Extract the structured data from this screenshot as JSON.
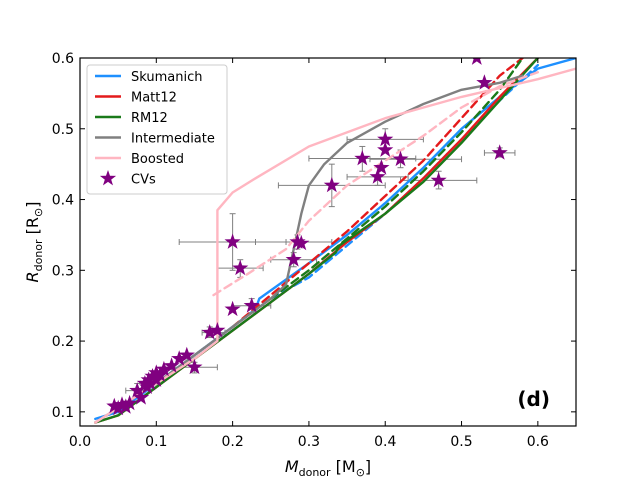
{
  "chart_data": {
    "type": "line",
    "panel_label": "(d)",
    "xlabel": "M",
    "xlabel_sub": "donor",
    "xlabel_unit": " [M",
    "xlabel_unit_sub": "⊙",
    "xlabel_close": "]",
    "ylabel": "R",
    "ylabel_sub": "donor",
    "ylabel_unit": " [R",
    "ylabel_unit_sub": "⊙",
    "ylabel_close": "]",
    "xlim": [
      0.0,
      0.65
    ],
    "ylim": [
      0.08,
      0.6
    ],
    "xticks": [
      0.0,
      0.1,
      0.2,
      0.3,
      0.4,
      0.5,
      0.6
    ],
    "xtick_labels": [
      "0.0",
      "0.1",
      "0.2",
      "0.3",
      "0.4",
      "0.5",
      "0.6"
    ],
    "yticks": [
      0.1,
      0.2,
      0.3,
      0.4,
      0.5,
      0.6
    ],
    "ytick_labels": [
      "0.1",
      "0.2",
      "0.3",
      "0.4",
      "0.5",
      "0.6"
    ],
    "legend_position": "top-left",
    "legend": [
      {
        "label": "Skumanich",
        "color": "#1e90ff",
        "kind": "line"
      },
      {
        "label": "Matt12",
        "color": "#e41a1c",
        "kind": "line"
      },
      {
        "label": "RM12",
        "color": "#1a7a1a",
        "kind": "line"
      },
      {
        "label": "Intermediate",
        "color": "#808080",
        "kind": "line"
      },
      {
        "label": "Boosted",
        "color": "#ffb6c1",
        "kind": "line"
      },
      {
        "label": "CVs",
        "color": "#800080",
        "kind": "star"
      }
    ],
    "series": [
      {
        "name": "Skumanich",
        "style": "solid",
        "color": "#1e90ff",
        "x": [
          0.02,
          0.05,
          0.1,
          0.15,
          0.2,
          0.23,
          0.235,
          0.3,
          0.35,
          0.4,
          0.45,
          0.5,
          0.55,
          0.6,
          0.65
        ],
        "y": [
          0.09,
          0.1,
          0.14,
          0.18,
          0.22,
          0.245,
          0.26,
          0.31,
          0.35,
          0.395,
          0.445,
          0.5,
          0.545,
          0.585,
          0.6
        ]
      },
      {
        "name": "Skumanich",
        "style": "dashed",
        "color": "#1e90ff",
        "x": [
          0.1,
          0.15,
          0.2,
          0.25,
          0.3,
          0.35,
          0.4,
          0.45,
          0.5,
          0.55,
          0.6
        ],
        "y": [
          0.14,
          0.18,
          0.22,
          0.26,
          0.29,
          0.335,
          0.38,
          0.43,
          0.485,
          0.54,
          0.59
        ]
      },
      {
        "name": "Matt12",
        "style": "solid",
        "color": "#e41a1c",
        "x": [
          0.02,
          0.05,
          0.1,
          0.15,
          0.2,
          0.25,
          0.3,
          0.35,
          0.4,
          0.45,
          0.5,
          0.55,
          0.6
        ],
        "y": [
          0.085,
          0.095,
          0.135,
          0.175,
          0.215,
          0.255,
          0.295,
          0.34,
          0.38,
          0.43,
          0.485,
          0.545,
          0.6
        ]
      },
      {
        "name": "Matt12",
        "style": "dashed",
        "color": "#e41a1c",
        "x": [
          0.2,
          0.25,
          0.3,
          0.35,
          0.4,
          0.45,
          0.5,
          0.55,
          0.58
        ],
        "y": [
          0.22,
          0.265,
          0.31,
          0.355,
          0.405,
          0.455,
          0.515,
          0.575,
          0.6
        ]
      },
      {
        "name": "RM12",
        "style": "solid",
        "color": "#1a7a1a",
        "x": [
          0.02,
          0.05,
          0.1,
          0.15,
          0.2,
          0.25,
          0.3,
          0.335,
          0.34,
          0.4,
          0.45,
          0.5,
          0.55,
          0.6
        ],
        "y": [
          0.085,
          0.095,
          0.135,
          0.175,
          0.215,
          0.255,
          0.295,
          0.325,
          0.335,
          0.38,
          0.425,
          0.48,
          0.54,
          0.6
        ]
      },
      {
        "name": "RM12",
        "style": "dashed",
        "color": "#1a7a1a",
        "x": [
          0.25,
          0.3,
          0.35,
          0.4,
          0.45,
          0.5,
          0.55,
          0.58
        ],
        "y": [
          0.26,
          0.3,
          0.345,
          0.39,
          0.44,
          0.495,
          0.555,
          0.6
        ]
      },
      {
        "name": "Intermediate",
        "style": "solid",
        "color": "#808080",
        "x": [
          0.02,
          0.1,
          0.2,
          0.25,
          0.27,
          0.28,
          0.29,
          0.3,
          0.32,
          0.35,
          0.4,
          0.45,
          0.5,
          0.55,
          0.58
        ],
        "y": [
          0.085,
          0.14,
          0.22,
          0.26,
          0.28,
          0.33,
          0.38,
          0.42,
          0.45,
          0.48,
          0.51,
          0.535,
          0.555,
          0.565,
          0.575
        ]
      },
      {
        "name": "Boosted",
        "style": "solid",
        "color": "#ffb6c1",
        "x": [
          0.02,
          0.1,
          0.15,
          0.18,
          0.18,
          0.2,
          0.23,
          0.3,
          0.4,
          0.5,
          0.6,
          0.65
        ],
        "y": [
          0.085,
          0.14,
          0.175,
          0.2,
          0.385,
          0.41,
          0.43,
          0.475,
          0.515,
          0.545,
          0.57,
          0.585
        ]
      },
      {
        "name": "Boosted",
        "style": "dashed",
        "color": "#ffb6c1",
        "x": [
          0.175,
          0.22,
          0.27,
          0.3,
          0.35,
          0.4,
          0.45,
          0.5,
          0.55,
          0.6
        ],
        "y": [
          0.265,
          0.295,
          0.33,
          0.37,
          0.42,
          0.455,
          0.49,
          0.53,
          0.56,
          0.58
        ]
      }
    ],
    "cvs": [
      {
        "x": 0.045,
        "y": 0.108
      },
      {
        "x": 0.05,
        "y": 0.105
      },
      {
        "x": 0.055,
        "y": 0.11
      },
      {
        "x": 0.06,
        "y": 0.107
      },
      {
        "x": 0.065,
        "y": 0.112
      },
      {
        "x": 0.075,
        "y": 0.13
      },
      {
        "x": 0.08,
        "y": 0.12
      },
      {
        "x": 0.085,
        "y": 0.14
      },
      {
        "x": 0.088,
        "y": 0.135
      },
      {
        "x": 0.09,
        "y": 0.145
      },
      {
        "x": 0.092,
        "y": 0.14
      },
      {
        "x": 0.095,
        "y": 0.15
      },
      {
        "x": 0.1,
        "y": 0.155
      },
      {
        "x": 0.1,
        "y": 0.145
      },
      {
        "x": 0.105,
        "y": 0.152
      },
      {
        "x": 0.11,
        "y": 0.16
      },
      {
        "x": 0.12,
        "y": 0.165
      },
      {
        "x": 0.13,
        "y": 0.175
      },
      {
        "x": 0.14,
        "y": 0.18
      },
      {
        "x": 0.15,
        "y": 0.163
      },
      {
        "x": 0.17,
        "y": 0.212
      },
      {
        "x": 0.18,
        "y": 0.215
      },
      {
        "x": 0.2,
        "y": 0.34
      },
      {
        "x": 0.2,
        "y": 0.245
      },
      {
        "x": 0.21,
        "y": 0.303
      },
      {
        "x": 0.225,
        "y": 0.25
      },
      {
        "x": 0.28,
        "y": 0.315
      },
      {
        "x": 0.285,
        "y": 0.34
      },
      {
        "x": 0.29,
        "y": 0.338
      },
      {
        "x": 0.33,
        "y": 0.42
      },
      {
        "x": 0.37,
        "y": 0.458
      },
      {
        "x": 0.39,
        "y": 0.432
      },
      {
        "x": 0.395,
        "y": 0.445
      },
      {
        "x": 0.4,
        "y": 0.485
      },
      {
        "x": 0.4,
        "y": 0.47
      },
      {
        "x": 0.42,
        "y": 0.457
      },
      {
        "x": 0.47,
        "y": 0.427
      },
      {
        "x": 0.52,
        "y": 0.6
      },
      {
        "x": 0.53,
        "y": 0.565
      },
      {
        "x": 0.55,
        "y": 0.466
      }
    ],
    "errorbars": [
      {
        "x": 0.2,
        "y": 0.34,
        "xlo": 0.13,
        "xhi": 0.27,
        "ylo": 0.3,
        "yhi": 0.38
      },
      {
        "x": 0.21,
        "y": 0.303,
        "xlo": 0.18,
        "xhi": 0.24,
        "ylo": 0.29,
        "yhi": 0.315
      },
      {
        "x": 0.28,
        "y": 0.315,
        "xlo": 0.25,
        "xhi": 0.31,
        "ylo": 0.305,
        "yhi": 0.325
      },
      {
        "x": 0.285,
        "y": 0.34,
        "xlo": 0.23,
        "xhi": 0.33,
        "ylo": 0.33,
        "yhi": 0.35
      },
      {
        "x": 0.33,
        "y": 0.42,
        "xlo": 0.26,
        "xhi": 0.4,
        "ylo": 0.39,
        "yhi": 0.45
      },
      {
        "x": 0.37,
        "y": 0.458,
        "xlo": 0.3,
        "xhi": 0.44,
        "ylo": 0.44,
        "yhi": 0.475
      },
      {
        "x": 0.39,
        "y": 0.432,
        "xlo": 0.35,
        "xhi": 0.43,
        "ylo": 0.42,
        "yhi": 0.445
      },
      {
        "x": 0.4,
        "y": 0.485,
        "xlo": 0.35,
        "xhi": 0.45,
        "ylo": 0.47,
        "yhi": 0.5
      },
      {
        "x": 0.42,
        "y": 0.457,
        "xlo": 0.38,
        "xhi": 0.5,
        "ylo": 0.445,
        "yhi": 0.47
      },
      {
        "x": 0.47,
        "y": 0.427,
        "xlo": 0.42,
        "xhi": 0.52,
        "ylo": 0.415,
        "yhi": 0.44
      },
      {
        "x": 0.55,
        "y": 0.466,
        "xlo": 0.53,
        "xhi": 0.57,
        "ylo": 0.46,
        "yhi": 0.473
      },
      {
        "x": 0.15,
        "y": 0.163,
        "xlo": 0.12,
        "xhi": 0.18,
        "ylo": 0.155,
        "yhi": 0.17
      },
      {
        "x": 0.17,
        "y": 0.212,
        "xlo": 0.16,
        "xhi": 0.19,
        "ylo": 0.205,
        "yhi": 0.22
      },
      {
        "x": 0.225,
        "y": 0.25,
        "xlo": 0.2,
        "xhi": 0.25,
        "ylo": 0.24,
        "yhi": 0.26
      },
      {
        "x": 0.075,
        "y": 0.13,
        "xlo": 0.06,
        "xhi": 0.09,
        "ylo": 0.12,
        "yhi": 0.14
      }
    ]
  }
}
